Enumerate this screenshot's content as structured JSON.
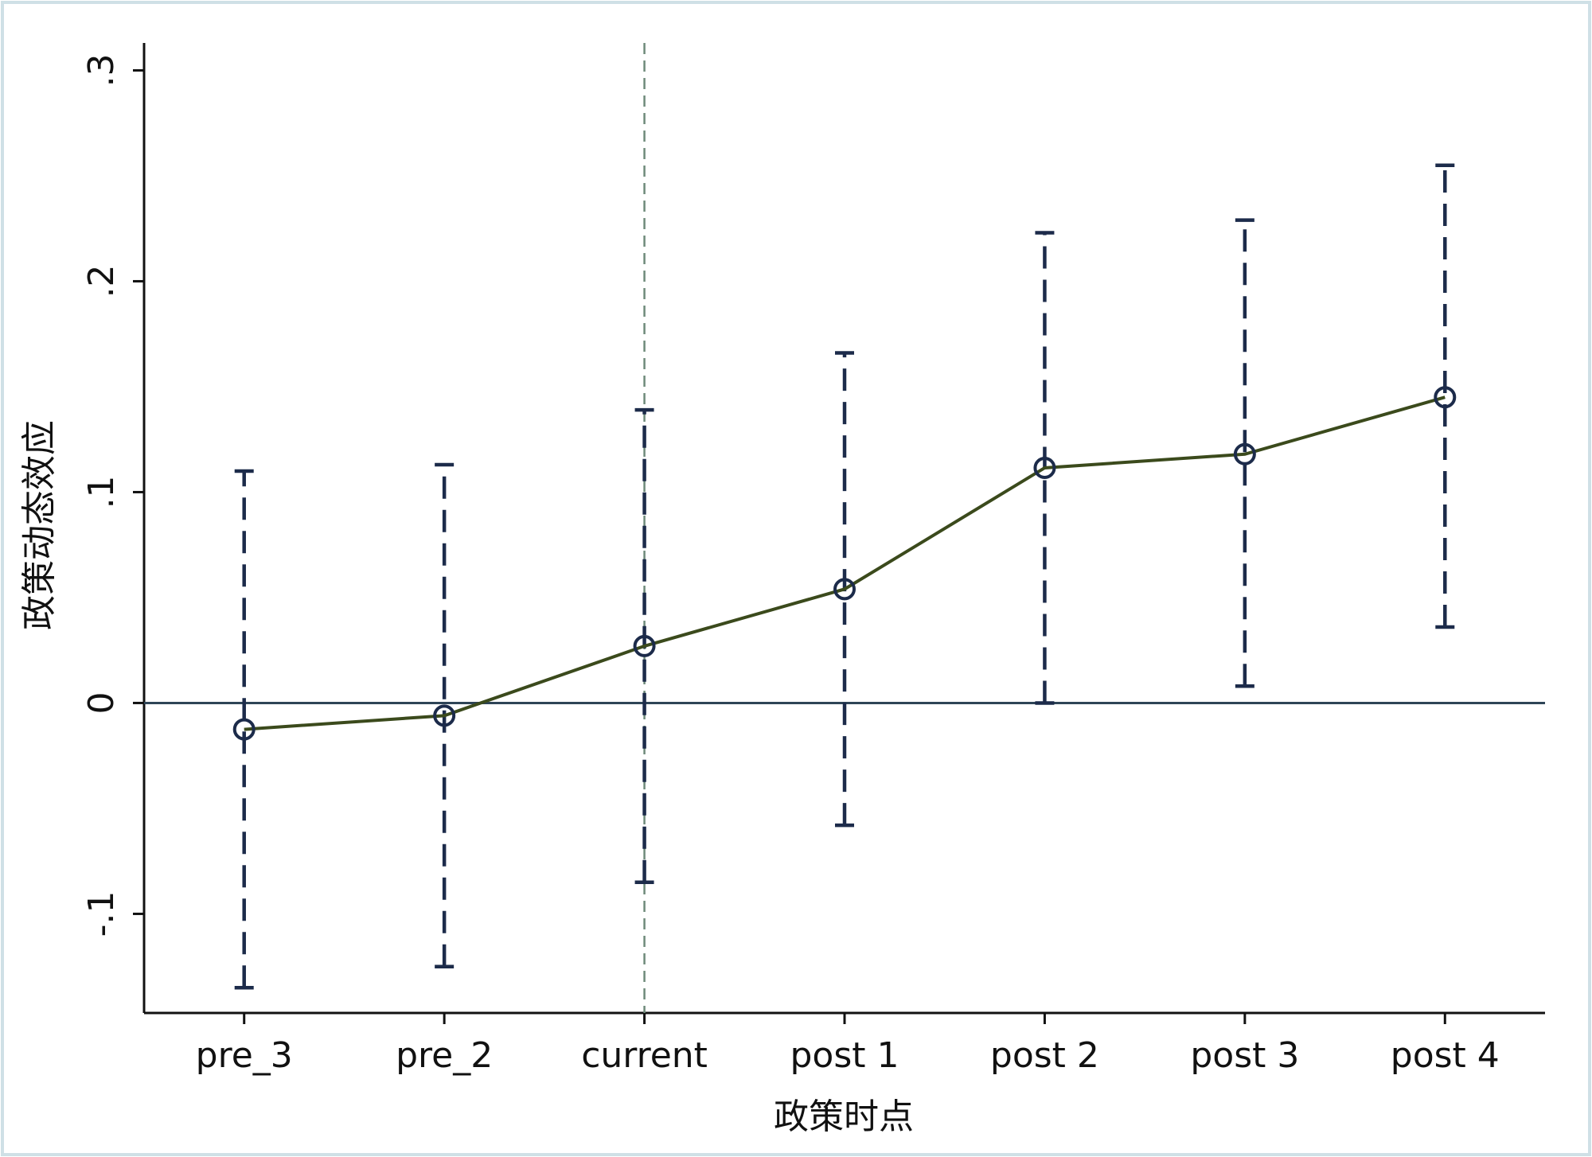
{
  "chart_data": {
    "type": "line",
    "x_label": "政策时点",
    "y_label": "政策动态效应",
    "categories": [
      "pre_3",
      "pre_2",
      "current",
      "post 1",
      "post 2",
      "post 3",
      "post 4"
    ],
    "values": [
      -0.0125,
      -0.006,
      0.027,
      0.054,
      0.1115,
      0.118,
      0.145
    ],
    "lower": [
      -0.135,
      -0.125,
      -0.085,
      -0.058,
      0.0,
      0.008,
      0.036
    ],
    "upper": [
      0.11,
      0.113,
      0.139,
      0.166,
      0.223,
      0.229,
      0.255
    ],
    "color": "#3b4a1c",
    "ci_color": "#1c2b4a",
    "ylim": [
      -0.147,
      0.313
    ],
    "yticks": [
      {
        "value": -0.1,
        "label": "-.1"
      },
      0,
      {
        "value": 0.1,
        "label": ".1"
      },
      {
        "value": 0.2,
        "label": ".2"
      },
      {
        "value": 0.3,
        "label": ".3"
      }
    ],
    "hline": 0,
    "vline_category_index": 2,
    "grid": false
  }
}
